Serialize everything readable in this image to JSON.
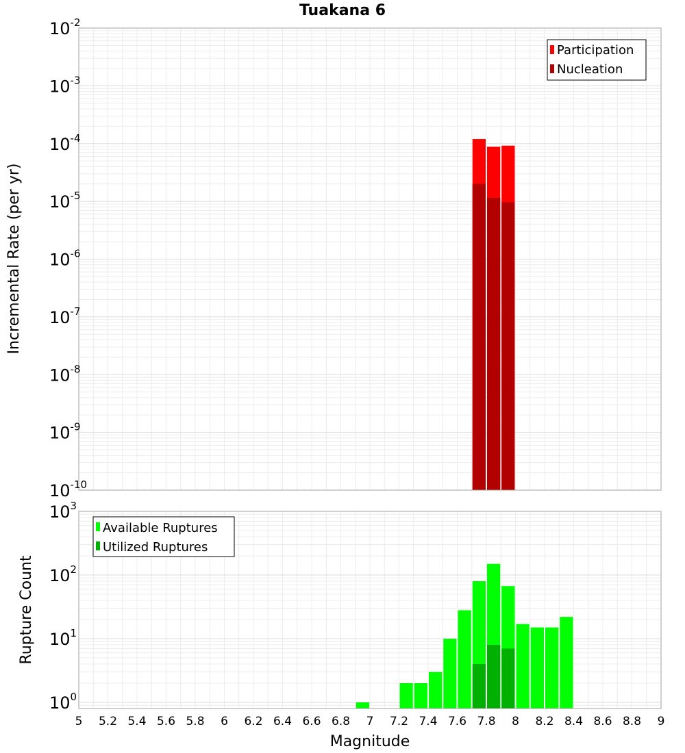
{
  "chart_data": [
    {
      "type": "bar",
      "title": "Tuakana 6",
      "xlabel": "",
      "ylabel": "Incremental Rate (per yr)",
      "yscale": "log",
      "xlim": [
        5,
        9
      ],
      "ylim": [
        1e-10,
        0.01
      ],
      "y_ticks": [
        {
          "base": "10",
          "exp": "-2"
        },
        {
          "base": "10",
          "exp": "-3"
        },
        {
          "base": "10",
          "exp": "-4"
        },
        {
          "base": "10",
          "exp": "-5"
        },
        {
          "base": "10",
          "exp": "-6"
        },
        {
          "base": "10",
          "exp": "-7"
        },
        {
          "base": "10",
          "exp": "-8"
        },
        {
          "base": "10",
          "exp": "-9"
        },
        {
          "base": "10",
          "exp": "-10"
        }
      ],
      "grid": true,
      "legend_position": "top-right",
      "series": [
        {
          "name": "Participation",
          "color": "#ff0000",
          "x": [
            7.75,
            7.85,
            7.95
          ],
          "values": [
            0.00012,
            8.8e-05,
            9.2e-05
          ]
        },
        {
          "name": "Nucleation",
          "color": "#b20000",
          "x": [
            7.75,
            7.85,
            7.95
          ],
          "values": [
            2e-05,
            1.15e-05,
            9.7e-06
          ]
        }
      ]
    },
    {
      "type": "bar",
      "title": "",
      "xlabel": "Magnitude",
      "ylabel": "Rupture Count",
      "yscale": "log",
      "xlim": [
        5,
        9
      ],
      "ylim": [
        0.8,
        1000
      ],
      "x_ticks": [
        "5",
        "5.2",
        "5.4",
        "5.6",
        "5.8",
        "6",
        "6.2",
        "6.4",
        "6.6",
        "6.8",
        "7",
        "7.2",
        "7.4",
        "7.6",
        "7.8",
        "8",
        "8.2",
        "8.4",
        "8.6",
        "8.8",
        "9"
      ],
      "y_ticks": [
        {
          "base": "10",
          "exp": "3"
        },
        {
          "base": "10",
          "exp": "2"
        },
        {
          "base": "10",
          "exp": "1"
        },
        {
          "base": "10",
          "exp": "0"
        }
      ],
      "grid": true,
      "legend_position": "top-left",
      "series": [
        {
          "name": "Available Ruptures",
          "color": "#00ff00",
          "x": [
            6.95,
            7.25,
            7.35,
            7.45,
            7.55,
            7.65,
            7.75,
            7.85,
            7.95,
            8.05,
            8.15,
            8.25,
            8.35
          ],
          "values": [
            1,
            2,
            2,
            3,
            10,
            28,
            80,
            150,
            67,
            17,
            15,
            15,
            22
          ]
        },
        {
          "name": "Utilized Ruptures",
          "color": "#00b000",
          "x": [
            7.75,
            7.85,
            7.95
          ],
          "values": [
            4,
            8,
            7
          ]
        }
      ]
    }
  ]
}
